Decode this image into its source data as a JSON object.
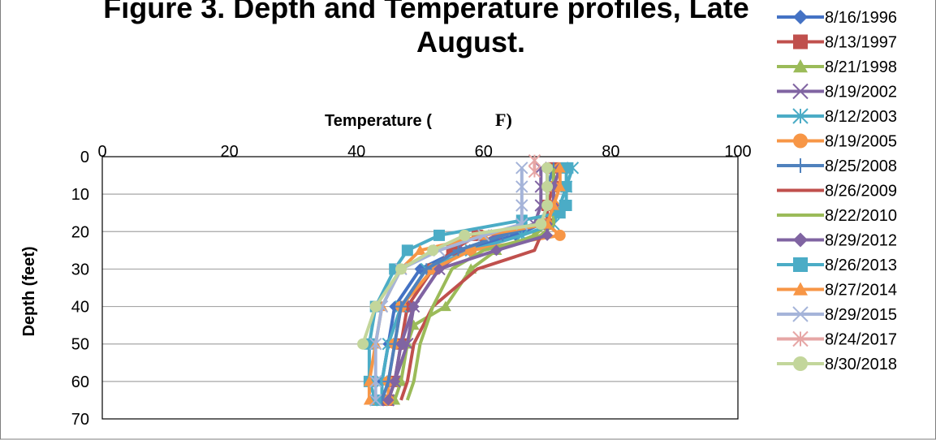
{
  "chart_data": {
    "type": "line",
    "title_lines": [
      "Figure 3. Depth and Temperature profiles, Late",
      "August."
    ],
    "xlabel_prefix": "Temperature (",
    "xlabel_unit": "F)",
    "ylabel": "Depth (feet)",
    "xlim": [
      0,
      100
    ],
    "ylim": [
      0,
      70
    ],
    "x_ticks": [
      0,
      20,
      40,
      60,
      80,
      100
    ],
    "y_ticks": [
      0,
      10,
      20,
      30,
      40,
      50,
      60,
      70
    ],
    "y_inverted": true,
    "grid": "horizontal",
    "legend_position": "right",
    "series": [
      {
        "name": "8/16/1996",
        "color": "#4472C4",
        "marker": "diamond",
        "points": [
          [
            70,
            3
          ],
          [
            70,
            8
          ],
          [
            70,
            13
          ],
          [
            69,
            18
          ],
          [
            65,
            21
          ],
          [
            56,
            25
          ],
          [
            50,
            30
          ],
          [
            46,
            40
          ],
          [
            45,
            50
          ],
          [
            44,
            60
          ],
          [
            44,
            65
          ]
        ]
      },
      {
        "name": "8/13/1997",
        "color": "#C0504D",
        "marker": "square",
        "points": [
          [
            71,
            3
          ],
          [
            71,
            8
          ],
          [
            70,
            13
          ],
          [
            70,
            18
          ],
          [
            59,
            21
          ],
          [
            55,
            25
          ],
          [
            52,
            30
          ],
          [
            48,
            40
          ],
          [
            47,
            50
          ],
          [
            46,
            60
          ],
          [
            45,
            65
          ]
        ]
      },
      {
        "name": "8/21/1998",
        "color": "#9BBB59",
        "marker": "triangle",
        "points": [
          [
            71,
            3
          ],
          [
            71,
            8
          ],
          [
            71,
            13
          ],
          [
            70,
            18
          ],
          [
            68,
            21
          ],
          [
            62,
            25
          ],
          [
            58,
            30
          ],
          [
            54,
            40
          ],
          [
            49,
            45
          ],
          [
            48,
            50
          ],
          [
            47,
            60
          ],
          [
            46,
            65
          ]
        ]
      },
      {
        "name": "8/19/2002",
        "color": "#8064A2",
        "marker": "x",
        "points": [
          [
            69,
            3
          ],
          [
            69,
            8
          ],
          [
            69,
            13
          ],
          [
            68,
            18
          ],
          [
            62,
            21
          ],
          [
            57,
            25
          ],
          [
            53,
            30
          ],
          [
            49,
            40
          ],
          [
            48,
            50
          ],
          [
            46,
            60
          ],
          [
            45,
            65
          ]
        ]
      },
      {
        "name": "8/12/2003",
        "color": "#4BACC6",
        "marker": "asterisk",
        "points": [
          [
            74,
            3
          ],
          [
            73,
            8
          ],
          [
            72,
            13
          ],
          [
            71,
            18
          ],
          [
            66,
            21
          ],
          [
            58,
            25
          ],
          [
            51,
            30
          ],
          [
            47,
            40
          ],
          [
            45,
            50
          ],
          [
            44,
            60
          ],
          [
            44,
            65
          ]
        ]
      },
      {
        "name": "8/19/2005",
        "color": "#F79646",
        "marker": "circle",
        "points": [
          [
            72,
            3
          ],
          [
            71,
            8
          ],
          [
            71,
            13
          ],
          [
            70,
            18
          ],
          [
            72,
            21
          ],
          [
            58,
            25
          ],
          [
            52,
            30
          ],
          [
            47,
            40
          ],
          [
            46,
            50
          ],
          [
            45,
            60
          ],
          [
            45,
            65
          ]
        ]
      },
      {
        "name": "8/25/2008",
        "color": "#4F81BD",
        "marker": "plus",
        "points": [
          [
            71,
            3
          ],
          [
            70,
            8
          ],
          [
            70,
            13
          ],
          [
            69,
            18
          ],
          [
            63,
            21
          ],
          [
            56,
            25
          ],
          [
            51,
            30
          ],
          [
            47,
            40
          ],
          [
            46,
            50
          ],
          [
            45,
            60
          ],
          [
            44,
            65
          ]
        ]
      },
      {
        "name": "8/26/2009",
        "color": "#C0504D",
        "marker": "none",
        "points": [
          [
            71,
            3
          ],
          [
            71,
            8
          ],
          [
            71,
            13
          ],
          [
            71,
            18
          ],
          [
            69,
            21
          ],
          [
            68,
            25
          ],
          [
            59,
            30
          ],
          [
            52,
            40
          ],
          [
            49,
            50
          ],
          [
            48,
            60
          ],
          [
            47,
            65
          ]
        ]
      },
      {
        "name": "8/22/2010",
        "color": "#9BBB59",
        "marker": "none",
        "points": [
          [
            71,
            3
          ],
          [
            71,
            8
          ],
          [
            71,
            13
          ],
          [
            71,
            18
          ],
          [
            69,
            21
          ],
          [
            60,
            25
          ],
          [
            55,
            30
          ],
          [
            52,
            40
          ],
          [
            50,
            50
          ],
          [
            49,
            60
          ],
          [
            48,
            65
          ]
        ]
      },
      {
        "name": "8/29/2012",
        "color": "#8064A2",
        "marker": "diamond",
        "points": [
          [
            72,
            3
          ],
          [
            71,
            8
          ],
          [
            71,
            13
          ],
          [
            70,
            18
          ],
          [
            70,
            21
          ],
          [
            62,
            25
          ],
          [
            53,
            30
          ],
          [
            49,
            40
          ],
          [
            47,
            50
          ],
          [
            46,
            60
          ],
          [
            45,
            65
          ]
        ]
      },
      {
        "name": "8/26/2013",
        "color": "#4BACC6",
        "marker": "square",
        "points": [
          [
            73,
            3
          ],
          [
            73,
            8
          ],
          [
            73,
            13
          ],
          [
            72,
            15
          ],
          [
            66,
            17
          ],
          [
            53,
            21
          ],
          [
            48,
            25
          ],
          [
            46,
            30
          ],
          [
            43,
            40
          ],
          [
            42,
            50
          ],
          [
            42,
            60
          ],
          [
            43,
            65
          ]
        ]
      },
      {
        "name": "8/27/2014",
        "color": "#F79646",
        "marker": "triangle",
        "points": [
          [
            72,
            3
          ],
          [
            72,
            8
          ],
          [
            71,
            13
          ],
          [
            70,
            18
          ],
          [
            60,
            21
          ],
          [
            50,
            25
          ],
          [
            47,
            30
          ],
          [
            44,
            40
          ],
          [
            43,
            50
          ],
          [
            42,
            60
          ],
          [
            42,
            65
          ]
        ]
      },
      {
        "name": "8/29/2015",
        "color": "#A5B4D9",
        "marker": "x",
        "points": [
          [
            66,
            3
          ],
          [
            66,
            8
          ],
          [
            66,
            13
          ],
          [
            66,
            18
          ],
          [
            60,
            21
          ],
          [
            53,
            25
          ],
          [
            47,
            30
          ],
          [
            44,
            40
          ],
          [
            43,
            50
          ],
          [
            43,
            60
          ],
          [
            43,
            65
          ]
        ]
      },
      {
        "name": "8/24/2017",
        "color": "#E6A6A5",
        "marker": "asterisk",
        "points": [
          [
            68,
            1
          ],
          [
            68,
            4
          ]
        ]
      },
      {
        "name": "8/30/2018",
        "color": "#C3D69B",
        "marker": "circle",
        "points": [
          [
            70,
            3
          ],
          [
            70,
            8
          ],
          [
            70,
            13
          ],
          [
            69,
            18
          ],
          [
            57,
            21
          ],
          [
            52,
            25
          ],
          [
            47,
            30
          ],
          [
            43,
            40
          ],
          [
            41,
            50
          ]
        ]
      }
    ]
  }
}
